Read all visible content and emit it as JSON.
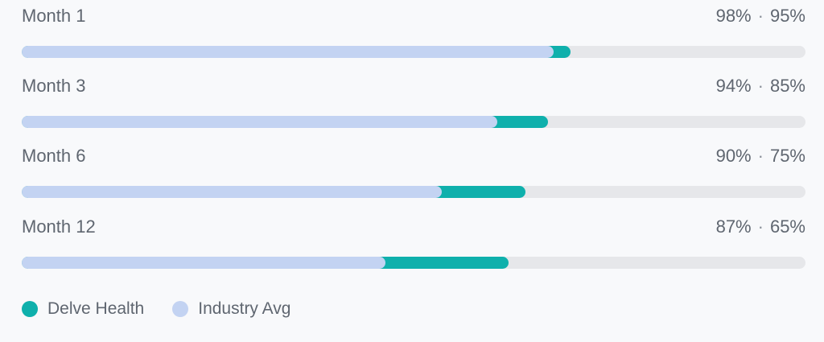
{
  "chart_data": {
    "type": "bar",
    "orientation": "horizontal",
    "categories": [
      "Month 1",
      "Month 3",
      "Month 6",
      "Month 12"
    ],
    "series": [
      {
        "name": "Delve Health",
        "values": [
          98,
          94,
          90,
          87
        ],
        "color": "#0fb0ac"
      },
      {
        "name": "Industry Avg",
        "values": [
          95,
          85,
          75,
          65
        ],
        "color": "#c3d3f2"
      }
    ],
    "value_labels": [
      {
        "delve": "98%",
        "industry": "95%"
      },
      {
        "delve": "94%",
        "industry": "85%"
      },
      {
        "delve": "90%",
        "industry": "75%"
      },
      {
        "delve": "87%",
        "industry": "65%"
      }
    ],
    "separator": "·",
    "legend": "bottom-left",
    "title": "",
    "xlabel": "",
    "ylabel": ""
  },
  "colors": {
    "track": "#e6e7ea",
    "delve": "#0fb0ac",
    "industry": "#c3d3f2"
  }
}
